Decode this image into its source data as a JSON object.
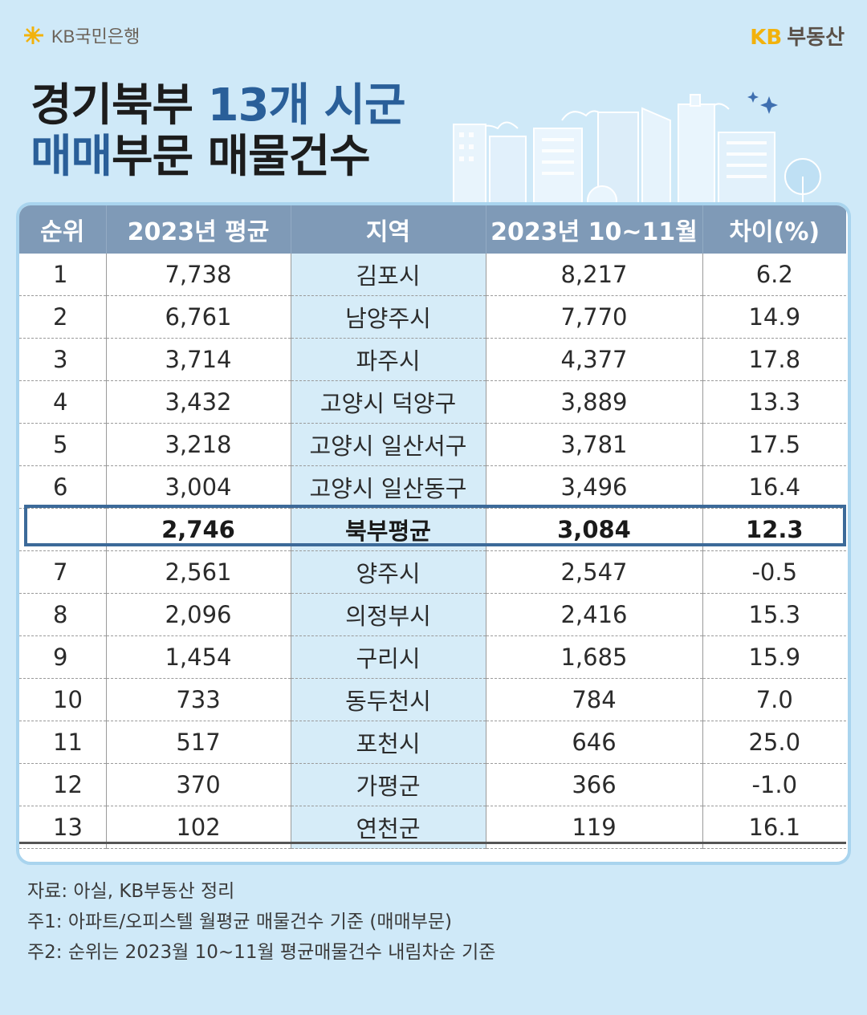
{
  "header": {
    "bank_name": "KB국민은행",
    "estate_kb": "KB",
    "estate_name": "부동산"
  },
  "title": {
    "line1_part1": "경기북부 ",
    "line1_part2": "13개 시군",
    "line2_part1": "매매",
    "line2_part2": "부문 매물건수"
  },
  "table": {
    "columns": [
      "순위",
      "2023년 평균",
      "지역",
      "2023년 10~11월",
      "차이(%)"
    ],
    "rows": [
      {
        "rank": "1",
        "avg2023": "7,738",
        "region": "김포시",
        "octnov": "8,217",
        "diff": "6.2"
      },
      {
        "rank": "2",
        "avg2023": "6,761",
        "region": "남양주시",
        "octnov": "7,770",
        "diff": "14.9"
      },
      {
        "rank": "3",
        "avg2023": "3,714",
        "region": "파주시",
        "octnov": "4,377",
        "diff": "17.8"
      },
      {
        "rank": "4",
        "avg2023": "3,432",
        "region": "고양시 덕양구",
        "octnov": "3,889",
        "diff": "13.3"
      },
      {
        "rank": "5",
        "avg2023": "3,218",
        "region": "고양시 일산서구",
        "octnov": "3,781",
        "diff": "17.5"
      },
      {
        "rank": "6",
        "avg2023": "3,004",
        "region": "고양시 일산동구",
        "octnov": "3,496",
        "diff": "16.4"
      },
      {
        "rank": "",
        "avg2023": "2,746",
        "region": "북부평균",
        "octnov": "3,084",
        "diff": "12.3"
      },
      {
        "rank": "7",
        "avg2023": "2,561",
        "region": "양주시",
        "octnov": "2,547",
        "diff": "-0.5"
      },
      {
        "rank": "8",
        "avg2023": "2,096",
        "region": "의정부시",
        "octnov": "2,416",
        "diff": "15.3"
      },
      {
        "rank": "9",
        "avg2023": "1,454",
        "region": "구리시",
        "octnov": "1,685",
        "diff": "15.9"
      },
      {
        "rank": "10",
        "avg2023": "733",
        "region": "동두천시",
        "octnov": "784",
        "diff": "7.0"
      },
      {
        "rank": "11",
        "avg2023": "517",
        "region": "포천시",
        "octnov": "646",
        "diff": "25.0"
      },
      {
        "rank": "12",
        "avg2023": "370",
        "region": "가평군",
        "octnov": "366",
        "diff": "-1.0"
      },
      {
        "rank": "13",
        "avg2023": "102",
        "region": "연천군",
        "octnov": "119",
        "diff": "16.1"
      }
    ]
  },
  "notes": [
    "자료: 아실, KB부동산 정리",
    "주1: 아파트/오피스텔 월평균 매물건수 기준 (매매부문)",
    "주2: 순위는 2023월 10~11월 평균매물건수 내림차순 기준"
  ],
  "colors": {
    "background": "#cfe9f8",
    "header_row": "#7f9ab7",
    "region_column": "#d6ecf8",
    "title_blue": "#2a5f99",
    "kb_yellow": "#f2b20c",
    "average_outline": "#3c6a99"
  }
}
